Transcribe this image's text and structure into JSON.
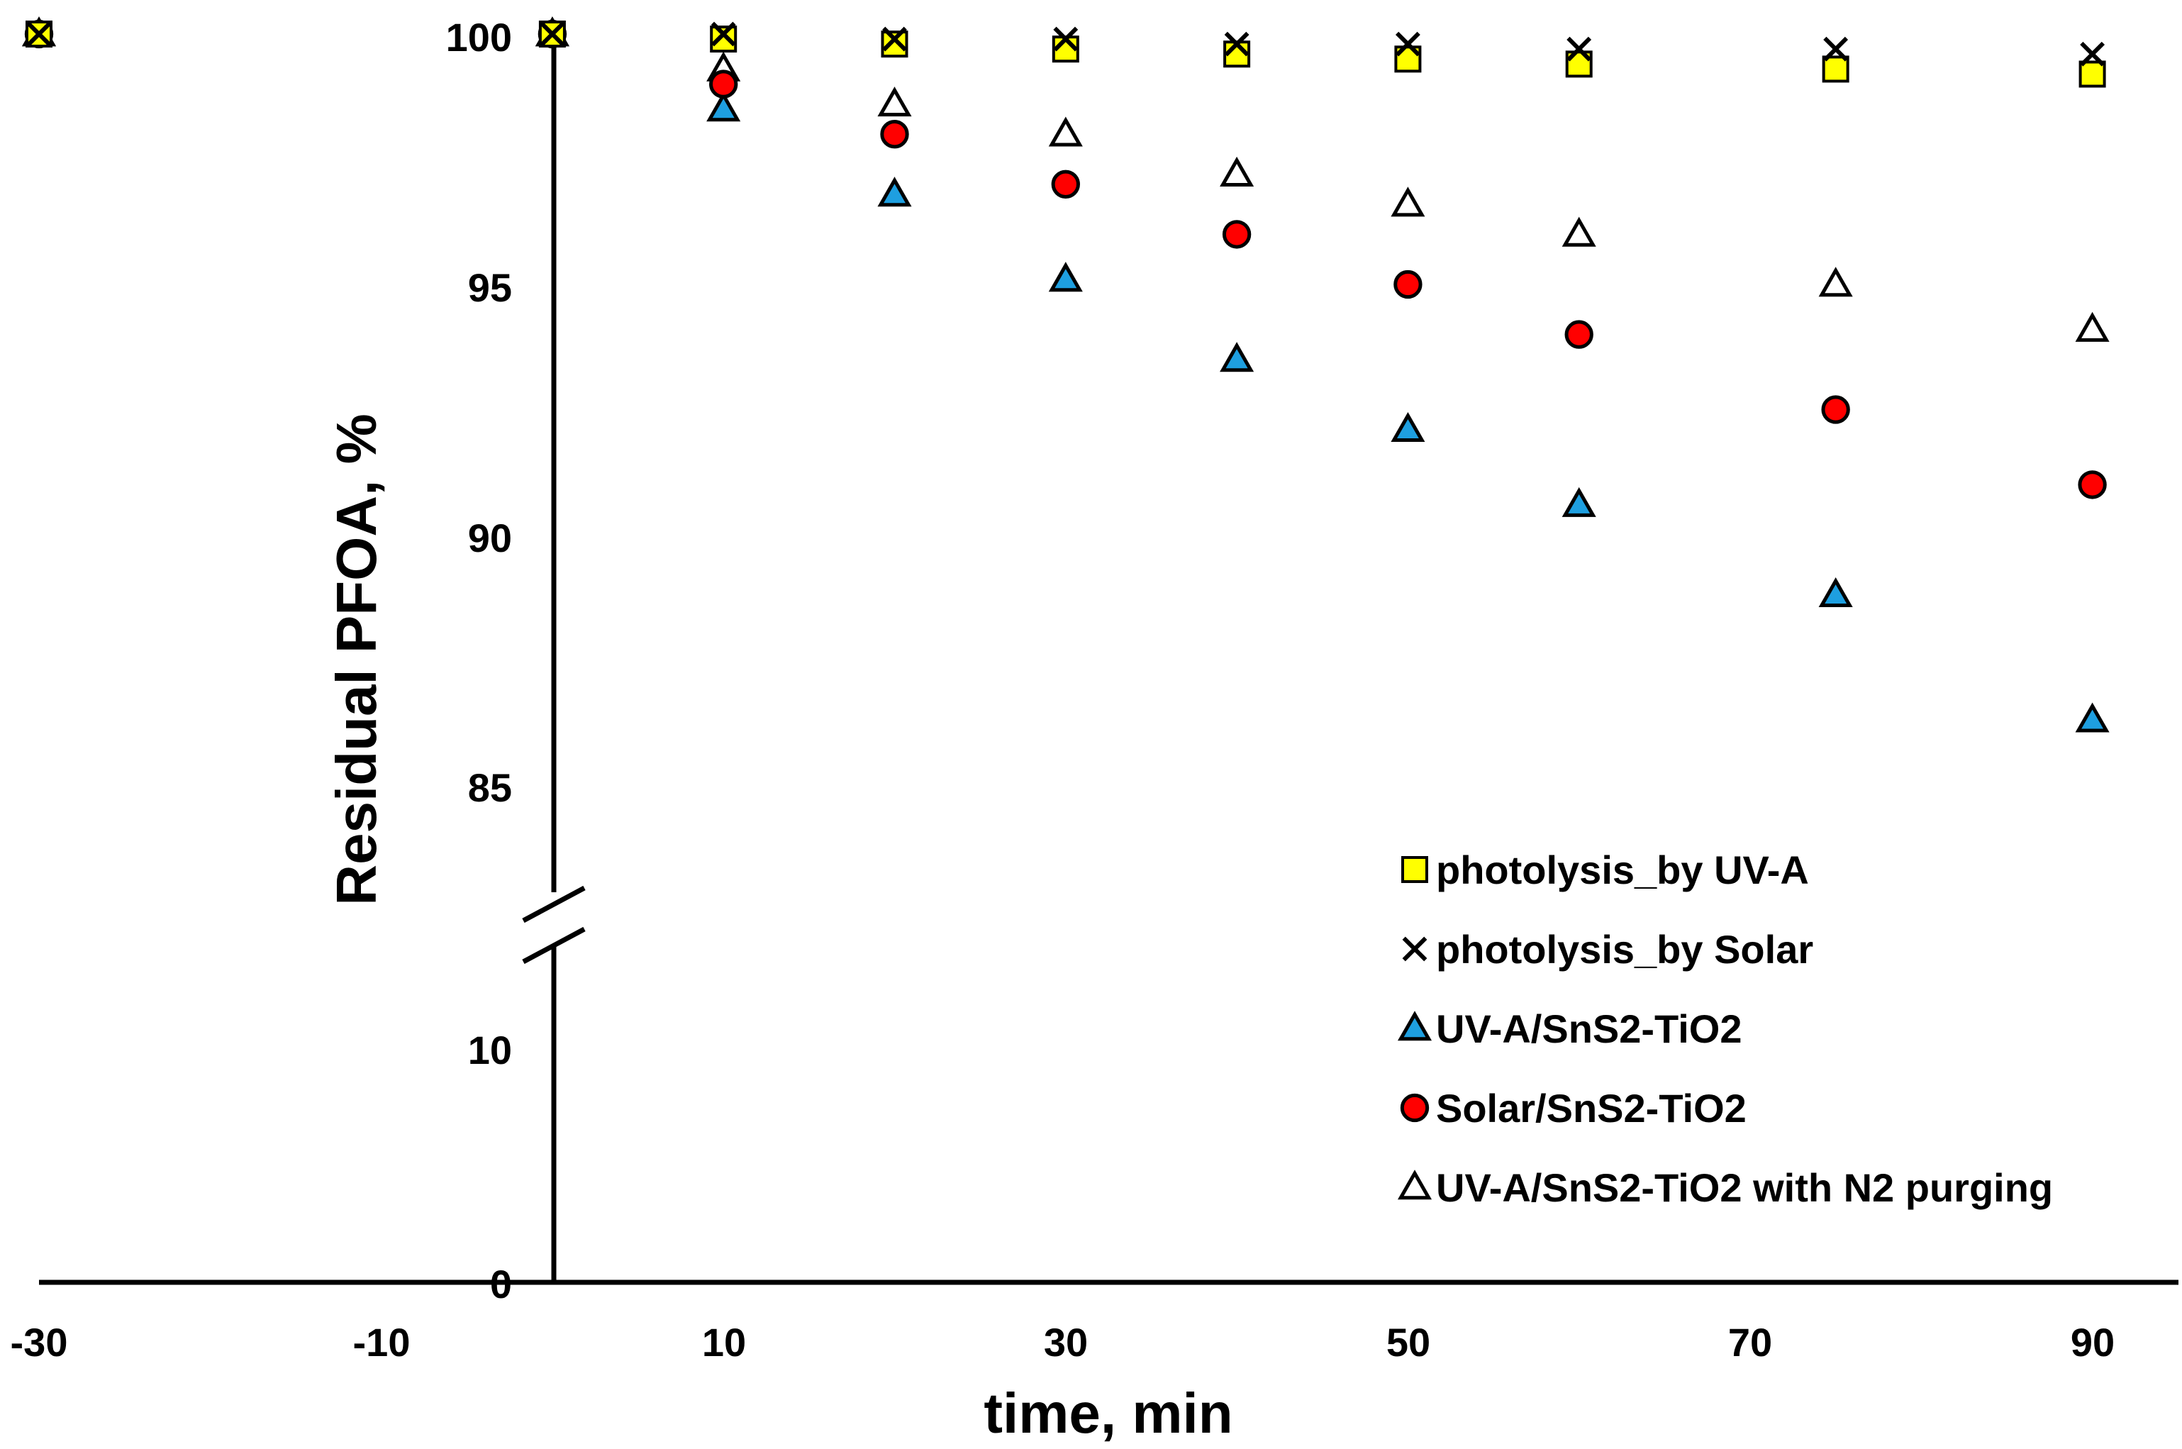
{
  "chart_data": {
    "type": "scatter",
    "title": "",
    "xlabel": "time, min",
    "ylabel": "Residual PFOA, %",
    "xlim": [
      -30,
      95
    ],
    "x_ticks": [
      "-30",
      "-10",
      "10",
      "30",
      "50",
      "70",
      "90"
    ],
    "y_ticks_upper": [
      "100",
      "95",
      "90",
      "85"
    ],
    "y_ticks_lower": [
      "10",
      "0"
    ],
    "ylim_upper": [
      83,
      100
    ],
    "ylim_lower": [
      0,
      12
    ],
    "axis_break": true,
    "grid": false,
    "legend_position": "bottom-right",
    "series": [
      {
        "name": "photolysis_by UV-A",
        "marker": "square",
        "fill": "#ffff00",
        "x": [
          -30,
          0,
          10,
          20,
          30,
          40,
          50,
          60,
          75,
          90
        ],
        "y": [
          100,
          100,
          99.9,
          99.8,
          99.7,
          99.6,
          99.5,
          99.4,
          99.3,
          99.2
        ]
      },
      {
        "name": "photolysis_by Solar",
        "marker": "x",
        "fill": "#000000",
        "x": [
          -30,
          0,
          10,
          20,
          30,
          40,
          50,
          60,
          75,
          90
        ],
        "y": [
          100,
          100,
          100,
          99.9,
          99.9,
          99.8,
          99.8,
          99.7,
          99.7,
          99.6
        ]
      },
      {
        "name": "UV-A/SnS2-TiO2",
        "marker": "triangle",
        "fill": "#1e9fe0",
        "x": [
          -30,
          0,
          10,
          20,
          30,
          40,
          50,
          60,
          75,
          90
        ],
        "y": [
          100,
          100,
          98.5,
          96.8,
          95.1,
          93.5,
          92.1,
          90.6,
          88.8,
          86.3
        ]
      },
      {
        "name": "Solar/SnS2-TiO2",
        "marker": "circle",
        "fill": "#ff0000",
        "x": [
          -30,
          0,
          10,
          20,
          30,
          40,
          50,
          60,
          75,
          90
        ],
        "y": [
          100,
          100,
          99,
          98,
          97,
          96,
          95,
          94,
          92.5,
          91
        ]
      },
      {
        "name": "UV-A/SnS2-TiO2 with N2 purging",
        "marker": "triangle-open",
        "fill": "#ffffff",
        "x": [
          -30,
          0,
          10,
          20,
          30,
          40,
          50,
          60,
          75,
          90
        ],
        "y": [
          100,
          100,
          99.3,
          98.6,
          98,
          97.2,
          96.6,
          96,
          95,
          94.1
        ]
      }
    ]
  }
}
